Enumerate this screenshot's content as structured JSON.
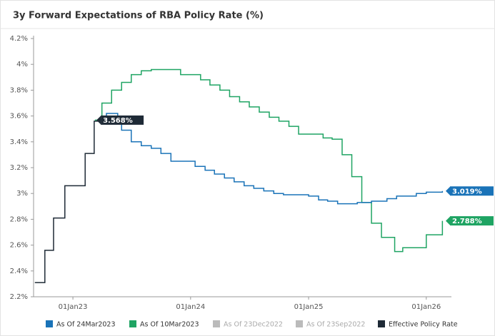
{
  "chart_data": {
    "type": "step-line",
    "title": "3y Forward Expectations of RBA Policy Rate (%)",
    "xlim": [
      "2022-09-01",
      "2026-03-20"
    ],
    "xticks": [
      {
        "value": "2023-01-01",
        "label": "01Jan23"
      },
      {
        "value": "2024-01-01",
        "label": "01Jan24"
      },
      {
        "value": "2025-01-01",
        "label": "01Jan25"
      },
      {
        "value": "2026-01-01",
        "label": "01Jan26"
      }
    ],
    "ylim": [
      2.2,
      4.2
    ],
    "yticks": [
      {
        "value": 2.2,
        "label": "2.2%"
      },
      {
        "value": 2.4,
        "label": "2.4%"
      },
      {
        "value": 2.6,
        "label": "2.6%"
      },
      {
        "value": 2.8,
        "label": "2.8%"
      },
      {
        "value": 3,
        "label": "3%"
      },
      {
        "value": 3.2,
        "label": "3.2%"
      },
      {
        "value": 3.4,
        "label": "3.4%"
      },
      {
        "value": 3.6,
        "label": "3.6%"
      },
      {
        "value": 3.8,
        "label": "3.8%"
      },
      {
        "value": 4,
        "label": "4%"
      },
      {
        "value": 4.2,
        "label": "4.2%"
      }
    ],
    "series": [
      {
        "name": "As Of 24Mar2023",
        "color": "#1a73b8",
        "enabled": true,
        "last_label": "3.019%",
        "x": [
          "2023-03-24",
          "2023-04-15",
          "2023-05-20",
          "2023-06-01",
          "2023-07-01",
          "2023-08-01",
          "2023-09-01",
          "2023-10-01",
          "2023-11-01",
          "2024-01-15",
          "2024-02-15",
          "2024-03-15",
          "2024-04-15",
          "2024-05-15",
          "2024-06-15",
          "2024-07-15",
          "2024-08-15",
          "2024-09-15",
          "2024-10-15",
          "2025-01-01",
          "2025-02-01",
          "2025-03-01",
          "2025-04-01",
          "2025-06-01",
          "2025-07-15",
          "2025-09-01",
          "2025-10-01",
          "2025-12-01",
          "2026-01-01",
          "2026-02-20"
        ],
        "values": [
          3.57,
          3.62,
          3.57,
          3.49,
          3.4,
          3.37,
          3.35,
          3.31,
          3.25,
          3.21,
          3.18,
          3.15,
          3.12,
          3.09,
          3.06,
          3.04,
          3.02,
          3.0,
          2.99,
          2.98,
          2.95,
          2.94,
          2.92,
          2.93,
          2.94,
          2.96,
          2.98,
          3.0,
          3.01,
          3.019
        ]
      },
      {
        "name": "As Of 10Mar2023",
        "color": "#1fa463",
        "enabled": true,
        "last_label": "2.788%",
        "x": [
          "2023-03-10",
          "2023-04-01",
          "2023-05-01",
          "2023-06-01",
          "2023-07-01",
          "2023-08-01",
          "2023-09-01",
          "2023-12-01",
          "2024-02-01",
          "2024-03-01",
          "2024-04-01",
          "2024-05-01",
          "2024-06-01",
          "2024-07-01",
          "2024-08-01",
          "2024-09-01",
          "2024-10-01",
          "2024-11-01",
          "2024-12-01",
          "2025-02-15",
          "2025-03-15",
          "2025-04-15",
          "2025-05-15",
          "2025-06-15",
          "2025-07-15",
          "2025-08-15",
          "2025-09-25",
          "2025-10-20",
          "2026-01-01",
          "2026-02-20"
        ],
        "values": [
          3.568,
          3.7,
          3.8,
          3.86,
          3.92,
          3.95,
          3.96,
          3.92,
          3.88,
          3.84,
          3.8,
          3.75,
          3.71,
          3.67,
          3.63,
          3.59,
          3.56,
          3.52,
          3.46,
          3.43,
          3.42,
          3.3,
          3.13,
          2.93,
          2.77,
          2.66,
          2.55,
          2.58,
          2.68,
          2.788
        ]
      },
      {
        "name": "As Of 23Dec2022",
        "color": "#bbbbbb",
        "enabled": false,
        "x": [],
        "values": []
      },
      {
        "name": "As Of 23Sep2022",
        "color": "#bbbbbb",
        "enabled": false,
        "x": [],
        "values": []
      },
      {
        "name": "Effective Policy Rate",
        "color": "#1e2a36",
        "enabled": true,
        "last_label": "3.568%",
        "x": [
          "2022-09-05",
          "2022-10-06",
          "2022-11-02",
          "2022-12-07",
          "2023-02-08",
          "2023-03-08",
          "2023-03-24"
        ],
        "values": [
          2.31,
          2.56,
          2.81,
          3.06,
          3.31,
          3.56,
          3.568
        ]
      }
    ]
  }
}
